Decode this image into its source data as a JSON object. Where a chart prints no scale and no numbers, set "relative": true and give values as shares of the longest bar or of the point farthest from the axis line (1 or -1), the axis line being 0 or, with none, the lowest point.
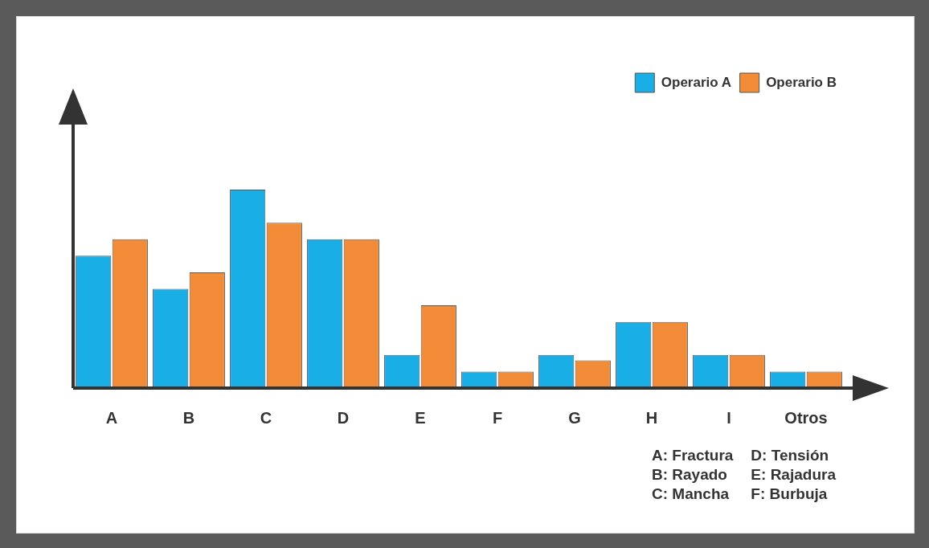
{
  "chart_data": {
    "type": "bar",
    "relative": true,
    "categories": [
      "A",
      "B",
      "C",
      "D",
      "E",
      "F",
      "G",
      "H",
      "I",
      "Otros"
    ],
    "series": [
      {
        "name": "Operario A",
        "color": "#19aee6",
        "values": [
          0.667,
          0.5,
          1,
          0.75,
          0.167,
          0.083,
          0.167,
          0.333,
          0.167,
          0.083
        ]
      },
      {
        "name": "Operario B",
        "color": "#f28c38",
        "values": [
          0.75,
          0.583,
          0.833,
          0.75,
          0.417,
          0.083,
          0.14,
          0.333,
          0.167,
          0.083
        ]
      }
    ],
    "legend": "top right",
    "grid": false,
    "annotations": [
      "A: Fractura",
      "D: Tensión",
      "B: Rayado",
      "E: Rajadura",
      "C: Mancha",
      "F: Burbuja"
    ]
  }
}
